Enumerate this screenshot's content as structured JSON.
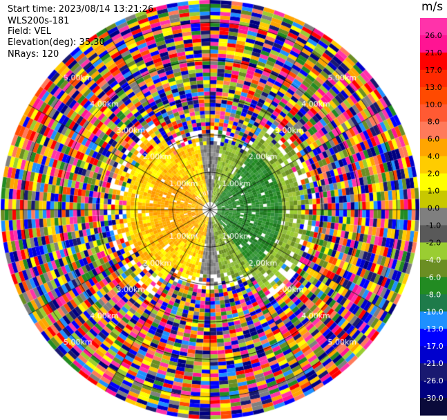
{
  "info": {
    "start_time": "Start time: 2023/08/14 13:21:26",
    "instrument": "WLS200s-181",
    "field": "Field: VEL",
    "elevation": "Elevation(deg): 35.30",
    "nrays": "NRays: 120"
  },
  "colorbar": {
    "unit": "m/s",
    "ticks": [
      "26.0",
      "21.0",
      "17.0",
      "13.0",
      "10.0",
      "8.0",
      "6.0",
      "4.0",
      "2.0",
      "1.0",
      "0.0",
      "-1.0",
      "-2.0",
      "-4.0",
      "-6.0",
      "-8.0",
      "-10.0",
      "-13.0",
      "-17.0",
      "-21.0",
      "-26.0",
      "-30.0"
    ],
    "colors": [
      "#ff33aa",
      "#ff1493",
      "#ff0000",
      "#ff2a00",
      "#ff4a00",
      "#ff5a33",
      "#ff7a5a",
      "#ffa500",
      "#ffcc00",
      "#ffff00",
      "#c8c800",
      "#7f7f7f",
      "#595959",
      "#9acd32",
      "#6b8e23",
      "#228b22",
      "#1e7b4a",
      "#1e90ff",
      "#0000ff",
      "#0000cd",
      "#191970",
      "#000080",
      "#0a0a3a"
    ]
  },
  "chart_data": {
    "type": "ppi",
    "field": "VEL",
    "units": "m/s",
    "elevation_deg": 35.3,
    "n_rays": 120,
    "range_rings_km": [
      1.0,
      2.0,
      3.0,
      4.0,
      5.0
    ],
    "range_ring_labels": [
      "1.00km",
      "2.00km",
      "3.00km",
      "4.00km",
      "5.00km"
    ],
    "west_half_near_velocity": "positive (yellow/orange)",
    "east_half_near_velocity": "negative (olive/green)"
  }
}
